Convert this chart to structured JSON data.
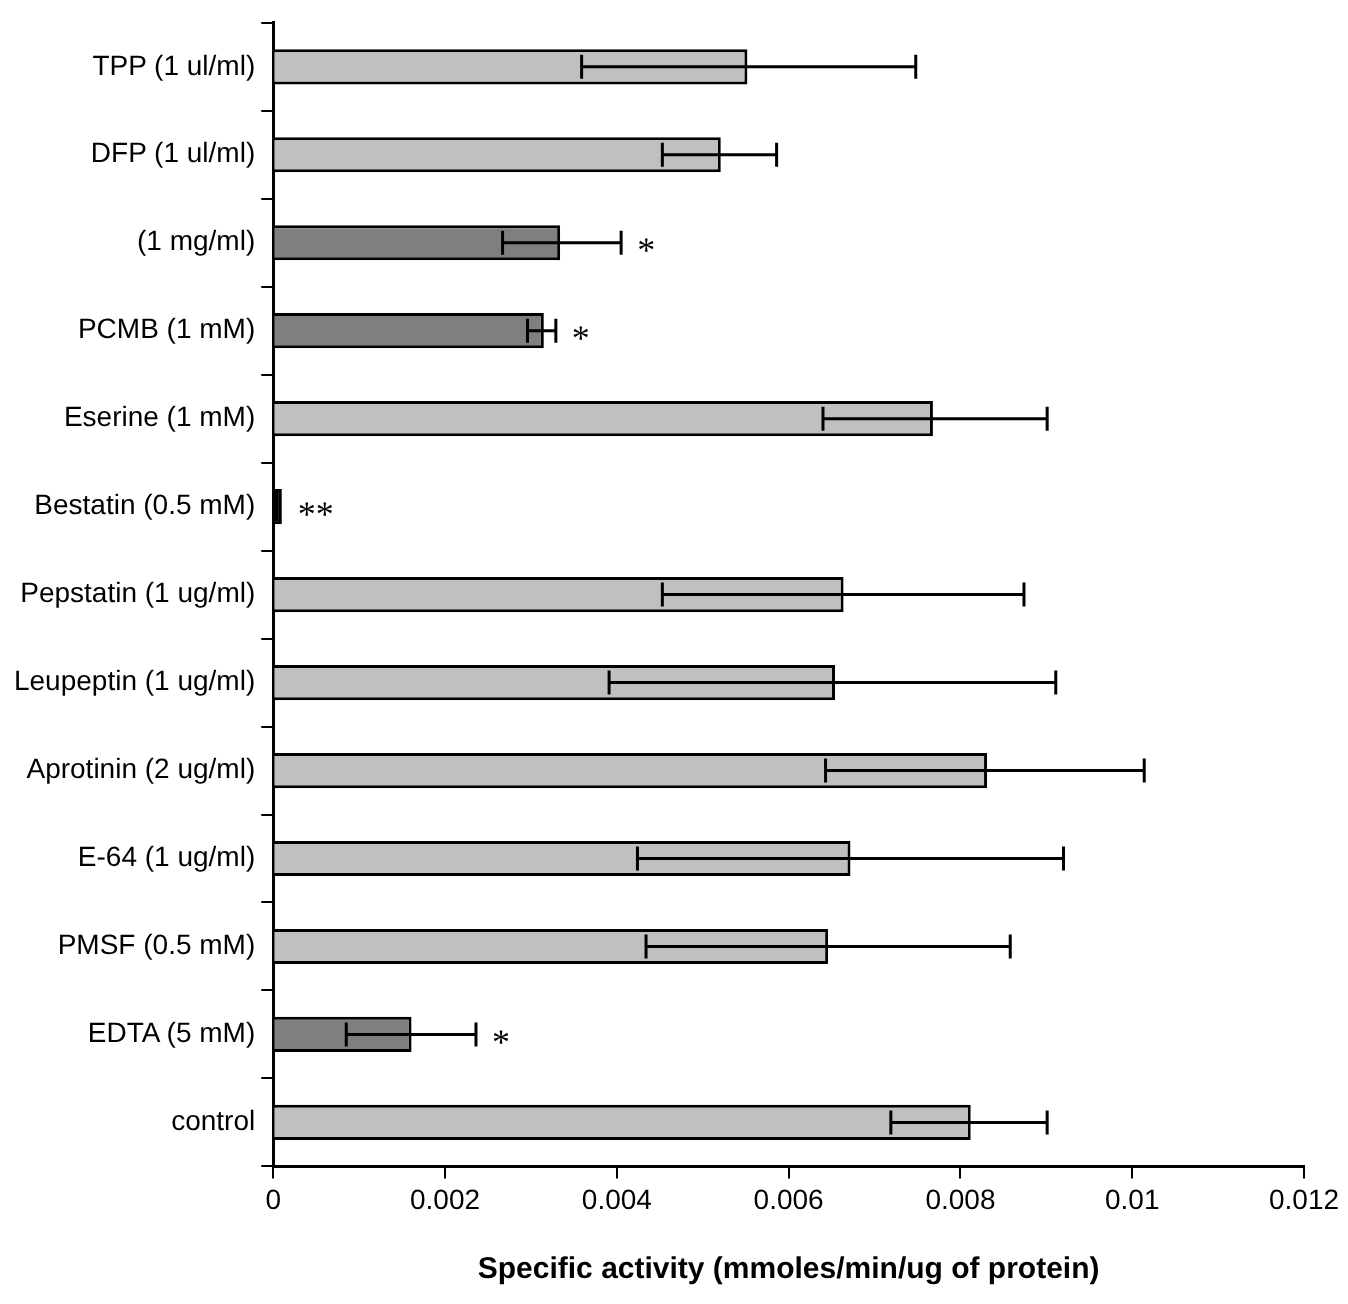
{
  "chart_data": {
    "type": "bar",
    "orientation": "horizontal",
    "xlabel": "Specific activity (mmoles/min/ug of protein)",
    "categories": [
      "TPP (1 ul/ml)",
      "DFP (1 ul/ml)",
      "(1 mg/ml)",
      "PCMB (1 mM)",
      "Eserine (1 mM)",
      "Bestatin (0.5 mM)",
      "Pepstatin (1 ug/ml)",
      "Leupeptin (1 ug/ml)",
      "Aprotinin (2 ug/ml)",
      "E-64 (1 ug/ml)",
      "PMSF (0.5 mM)",
      "EDTA (5 mM)",
      "control"
    ],
    "values": [
      0.00552,
      0.00521,
      0.00334,
      0.00315,
      0.00768,
      0.0001,
      0.00664,
      0.00654,
      0.00831,
      0.00672,
      0.00646,
      0.00161,
      0.00812
    ],
    "colors": [
      "#c0c0c0",
      "#c0c0c0",
      "#7f7f7f",
      "#7f7f7f",
      "#c0c0c0",
      "#000000",
      "#c0c0c0",
      "#c0c0c0",
      "#c0c0c0",
      "#c0c0c0",
      "#c0c0c0",
      "#7f7f7f",
      "#c0c0c0"
    ],
    "errors": [
      [
        0.00359,
        0.00748
      ],
      [
        0.00453,
        0.00586
      ],
      [
        0.00267,
        0.00405
      ],
      [
        0.00296,
        0.00329
      ],
      [
        0.0064,
        0.00901
      ],
      null,
      [
        0.00453,
        0.00874
      ],
      [
        0.00391,
        0.00911
      ],
      [
        0.00643,
        0.01014
      ],
      [
        0.00424,
        0.0092
      ],
      [
        0.00434,
        0.00858
      ],
      [
        0.00085,
        0.00236
      ],
      [
        0.00719,
        0.00901
      ]
    ],
    "xlim": [
      0,
      0.012
    ],
    "xticks": [
      0,
      0.002,
      0.004,
      0.006,
      0.008,
      0.01,
      0.012
    ],
    "value_labels": [
      null,
      null,
      "*",
      "*",
      null,
      "**",
      null,
      null,
      null,
      null,
      null,
      "*",
      null
    ],
    "grid": false,
    "legend": false
  }
}
